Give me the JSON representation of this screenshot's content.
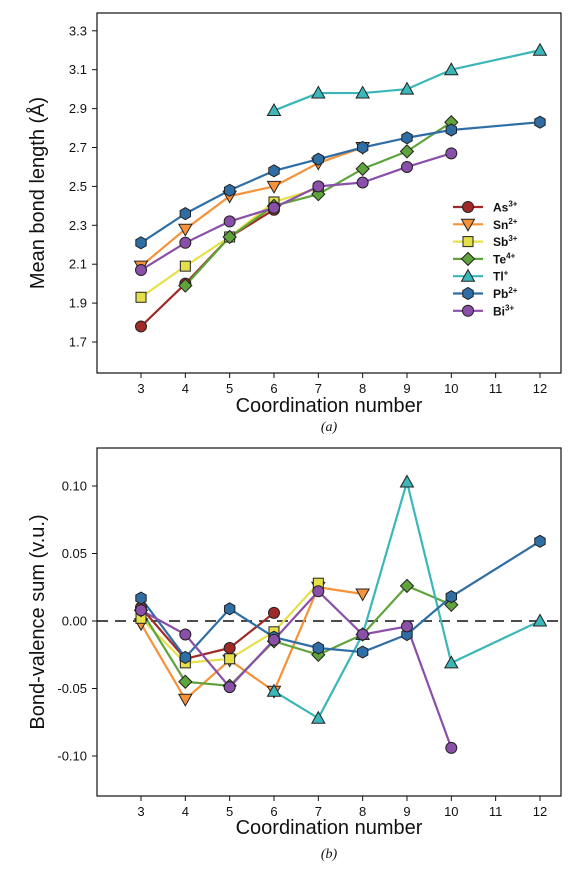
{
  "chart_data": [
    {
      "type": "line",
      "xlabel": "Coordination number",
      "ylabel": "Mean bond length (Å)",
      "caption": "(a)",
      "x_ticks": [
        3,
        4,
        5,
        6,
        7,
        8,
        9,
        10,
        11,
        12
      ],
      "y_ticks": [
        "1.7",
        "1.9",
        "2.1",
        "2.3",
        "2.5",
        "2.7",
        "2.9",
        "3.1",
        "3.3"
      ],
      "xlim": [
        2,
        13
      ],
      "ylim": [
        1.6,
        3.4
      ],
      "grid": false,
      "legend": "right",
      "series": [
        {
          "name": "As",
          "charge": "3+",
          "color": "#a02a28",
          "marker": "circle",
          "x": [
            3,
            4,
            5,
            6
          ],
          "y": [
            1.78,
            2.0,
            2.24,
            2.38
          ]
        },
        {
          "name": "Sn",
          "charge": "2+",
          "color": "#f5923a",
          "marker": "triangle-down",
          "x": [
            3,
            4,
            5,
            6,
            7,
            8
          ],
          "y": [
            2.09,
            2.28,
            2.45,
            2.5,
            2.62,
            2.7
          ]
        },
        {
          "name": "Sb",
          "charge": "3+",
          "color": "#e5e04a",
          "marker": "square",
          "x": [
            3,
            4,
            5,
            6,
            7
          ],
          "y": [
            1.93,
            2.09,
            2.24,
            2.42,
            2.49
          ]
        },
        {
          "name": "Te",
          "charge": "4+",
          "color": "#5fa33c",
          "marker": "diamond",
          "x": [
            4,
            5,
            6,
            7,
            8,
            9,
            10
          ],
          "y": [
            1.99,
            2.24,
            2.4,
            2.46,
            2.59,
            2.68,
            2.83
          ]
        },
        {
          "name": "Tl",
          "charge": "+",
          "color": "#3bb7ba",
          "marker": "triangle-up",
          "x": [
            6,
            7,
            8,
            9,
            10,
            12
          ],
          "y": [
            2.89,
            2.98,
            2.98,
            3.0,
            3.1,
            3.2
          ]
        },
        {
          "name": "Pb",
          "charge": "2+",
          "color": "#2f6ea5",
          "marker": "hexagon",
          "x": [
            3,
            4,
            5,
            6,
            7,
            8,
            9,
            10,
            12
          ],
          "y": [
            2.21,
            2.36,
            2.48,
            2.58,
            2.64,
            2.7,
            2.75,
            2.79,
            2.83
          ]
        },
        {
          "name": "Bi",
          "charge": "3+",
          "color": "#8a4fa8",
          "marker": "circle",
          "x": [
            3,
            4,
            5,
            6,
            7,
            8,
            9,
            10
          ],
          "y": [
            2.07,
            2.21,
            2.32,
            2.39,
            2.5,
            2.52,
            2.6,
            2.67
          ]
        }
      ]
    },
    {
      "type": "line",
      "xlabel": "Coordination number",
      "ylabel": "Bond-valence sum (v.u.)",
      "caption": "(b)",
      "x_ticks": [
        3,
        4,
        5,
        6,
        7,
        8,
        9,
        10,
        11,
        12
      ],
      "y_ticks": [
        "-0.10",
        "-0.05",
        "0.00",
        "0.05",
        "0.10"
      ],
      "xlim": [
        2,
        13
      ],
      "ylim": [
        -0.13,
        0.13
      ],
      "grid": false,
      "reference_line": 0,
      "series": [
        {
          "name": "As",
          "charge": "3+",
          "color": "#a02a28",
          "marker": "circle",
          "x": [
            3,
            4,
            5,
            6
          ],
          "y": [
            0.01,
            -0.028,
            -0.02,
            0.006
          ]
        },
        {
          "name": "Sn",
          "charge": "2+",
          "color": "#f5923a",
          "marker": "triangle-down",
          "x": [
            3,
            4,
            5,
            6,
            7,
            8
          ],
          "y": [
            -0.002,
            -0.058,
            -0.029,
            -0.052,
            0.025,
            0.02
          ]
        },
        {
          "name": "Sb",
          "charge": "3+",
          "color": "#e5e04a",
          "marker": "square",
          "x": [
            3,
            4,
            5,
            6,
            7
          ],
          "y": [
            0.002,
            -0.031,
            -0.028,
            -0.008,
            0.028
          ]
        },
        {
          "name": "Te",
          "charge": "4+",
          "color": "#5fa33c",
          "marker": "diamond",
          "x": [
            3,
            4,
            5,
            6,
            7,
            8,
            9,
            10
          ],
          "y": [
            0.008,
            -0.045,
            -0.048,
            -0.015,
            -0.025,
            -0.01,
            0.026,
            0.012
          ]
        },
        {
          "name": "Tl",
          "charge": "+",
          "color": "#3bb7ba",
          "marker": "triangle-up",
          "x": [
            6,
            7,
            8,
            9,
            10,
            12
          ],
          "y": [
            -0.052,
            -0.072,
            -0.01,
            0.103,
            -0.031,
            0.0
          ]
        },
        {
          "name": "Pb",
          "charge": "2+",
          "color": "#2f6ea5",
          "marker": "hexagon",
          "x": [
            3,
            4,
            5,
            6,
            7,
            8,
            9,
            10,
            12
          ],
          "y": [
            0.017,
            -0.027,
            0.009,
            -0.012,
            -0.02,
            -0.023,
            -0.01,
            0.018,
            0.059
          ]
        },
        {
          "name": "Bi",
          "charge": "3+",
          "color": "#8a4fa8",
          "marker": "circle",
          "x": [
            3,
            4,
            5,
            6,
            7,
            8,
            9,
            10
          ],
          "y": [
            0.008,
            -0.01,
            -0.049,
            -0.014,
            0.022,
            -0.01,
            -0.004,
            -0.094
          ]
        }
      ]
    }
  ]
}
